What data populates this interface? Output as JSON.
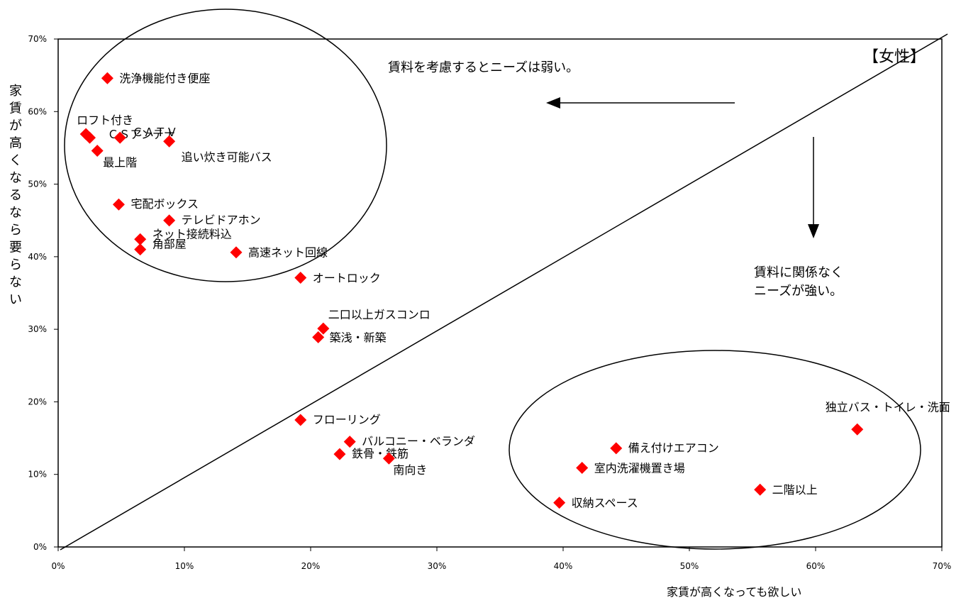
{
  "chart_data": {
    "type": "scatter",
    "title": "",
    "tag": "【女性】",
    "xlabel": "家賃が高くなっても欲しい",
    "ylabel": "家賃が高くなるなら要らない",
    "xlim": [
      0,
      70
    ],
    "ylim": [
      0,
      70
    ],
    "x_ticks": [
      "0%",
      "10%",
      "20%",
      "30%",
      "40%",
      "50%",
      "60%",
      "70%"
    ],
    "y_ticks": [
      "0%",
      "10%",
      "20%",
      "30%",
      "40%",
      "50%",
      "60%",
      "70%"
    ],
    "grid": false,
    "marker_color": "#ff0000",
    "annotations": {
      "weak": "賃料を考慮するとニーズは弱い。",
      "strong_line1": "賃料に関係なく",
      "strong_line2": "ニーズが強い。"
    },
    "points": [
      {
        "label": "洗浄機能付き便座",
        "x": 3.9,
        "y": 64.6
      },
      {
        "label": "ロフト付き",
        "x": 2.2,
        "y": 56.9
      },
      {
        "label": "ＣＳアンテナ",
        "x": 2.5,
        "y": 56.4
      },
      {
        "label": "ＣＡＴＶ",
        "x": 4.9,
        "y": 56.4
      },
      {
        "label": "追い炊き可能バス",
        "x": 8.8,
        "y": 55.9
      },
      {
        "label": "最上階",
        "x": 3.1,
        "y": 54.6
      },
      {
        "label": "宅配ボックス",
        "x": 4.8,
        "y": 47.2
      },
      {
        "label": "テレビドアホン",
        "x": 8.8,
        "y": 45.0
      },
      {
        "label": "ネット接続料込",
        "x": 6.5,
        "y": 42.4
      },
      {
        "label": "角部屋",
        "x": 6.5,
        "y": 41.0
      },
      {
        "label": "高速ネット回線",
        "x": 14.1,
        "y": 40.6
      },
      {
        "label": "オートロック",
        "x": 19.2,
        "y": 37.1
      },
      {
        "label": "二口以上ガスコンロ",
        "x": 21.0,
        "y": 30.1
      },
      {
        "label": "築浅・新築",
        "x": 20.6,
        "y": 28.9
      },
      {
        "label": "フローリング",
        "x": 19.2,
        "y": 17.5
      },
      {
        "label": "バルコニー・ベランダ",
        "x": 23.1,
        "y": 14.5
      },
      {
        "label": "鉄骨・鉄筋",
        "x": 22.3,
        "y": 12.8
      },
      {
        "label": "南向き",
        "x": 26.2,
        "y": 12.2
      },
      {
        "label": "独立バス・トイレ・洗面",
        "x": 63.3,
        "y": 16.2
      },
      {
        "label": "備え付けエアコン",
        "x": 44.2,
        "y": 13.6
      },
      {
        "label": "室内洗濯機置き場",
        "x": 41.5,
        "y": 10.9
      },
      {
        "label": "二階以上",
        "x": 55.6,
        "y": 7.9
      },
      {
        "label": "収納スペース",
        "x": 39.7,
        "y": 6.1
      }
    ]
  }
}
